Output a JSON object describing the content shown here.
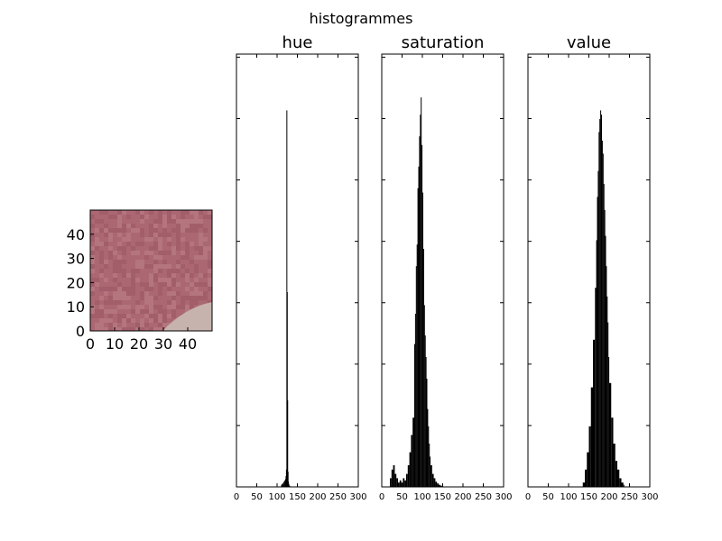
{
  "figure": {
    "title": "histogrammes",
    "background": "#ffffff"
  },
  "image_panel": {
    "xticks": [
      "0",
      "10",
      "20",
      "30",
      "40"
    ],
    "yticks": [
      "0",
      "10",
      "20",
      "30",
      "40"
    ],
    "xlim": [
      0,
      50
    ],
    "ylim": [
      50,
      0
    ],
    "colors": {
      "base": "#ab6872",
      "dark": "#9e5a66",
      "light": "#b87a83",
      "corner": "#c7b3ad"
    }
  },
  "chart_data": [
    {
      "type": "bar",
      "title": "hue",
      "xlim": [
        0,
        300
      ],
      "ylim": [
        0,
        1
      ],
      "xticks": [
        "0",
        "50",
        "100",
        "150",
        "200",
        "250",
        "300"
      ],
      "y_tick_labels": false,
      "bar_color": "#000000",
      "bins": [
        110,
        112,
        114,
        116,
        118,
        120,
        121,
        122,
        123,
        124,
        125,
        126,
        127,
        128,
        129,
        130
      ],
      "values": [
        0.005,
        0.007,
        0.009,
        0.012,
        0.015,
        0.018,
        0.025,
        0.04,
        0.87,
        0.45,
        0.2,
        0.035,
        0.012,
        0.006,
        0.003,
        0.002
      ]
    },
    {
      "type": "bar",
      "title": "saturation",
      "xlim": [
        0,
        300
      ],
      "ylim": [
        0,
        1
      ],
      "xticks": [
        "0",
        "50",
        "100",
        "150",
        "200",
        "250",
        "300"
      ],
      "y_tick_labels": false,
      "bar_color": "#000000",
      "bins": [
        20,
        24,
        28,
        32,
        36,
        40,
        44,
        48,
        52,
        56,
        60,
        64,
        68,
        72,
        76,
        80,
        82,
        84,
        86,
        88,
        90,
        92,
        94,
        96,
        98,
        100,
        102,
        104,
        106,
        108,
        110,
        112,
        114,
        116,
        118,
        120,
        124,
        128,
        132,
        136,
        140,
        144,
        148
      ],
      "values": [
        0.02,
        0.04,
        0.05,
        0.03,
        0.02,
        0.01,
        0.015,
        0.01,
        0.02,
        0.015,
        0.03,
        0.05,
        0.08,
        0.12,
        0.16,
        0.33,
        0.4,
        0.51,
        0.56,
        0.69,
        0.74,
        0.81,
        0.86,
        0.9,
        0.79,
        0.68,
        0.55,
        0.42,
        0.35,
        0.3,
        0.25,
        0.18,
        0.14,
        0.1,
        0.07,
        0.05,
        0.03,
        0.02,
        0.012,
        0.008,
        0.005,
        0.003,
        0.002
      ]
    },
    {
      "type": "bar",
      "title": "value",
      "xlim": [
        0,
        300
      ],
      "ylim": [
        0,
        1
      ],
      "xticks": [
        "0",
        "50",
        "100",
        "150",
        "200",
        "250",
        "300"
      ],
      "y_tick_labels": false,
      "bar_color": "#000000",
      "bins": [
        135,
        140,
        145,
        150,
        155,
        160,
        165,
        168,
        170,
        172,
        174,
        176,
        178,
        180,
        182,
        184,
        186,
        188,
        190,
        192,
        194,
        196,
        198,
        200,
        205,
        210,
        215,
        220,
        225,
        230,
        235
      ],
      "values": [
        0.01,
        0.04,
        0.08,
        0.14,
        0.23,
        0.34,
        0.46,
        0.57,
        0.67,
        0.73,
        0.82,
        0.85,
        0.87,
        0.86,
        0.8,
        0.77,
        0.7,
        0.64,
        0.58,
        0.51,
        0.44,
        0.38,
        0.3,
        0.24,
        0.16,
        0.1,
        0.06,
        0.04,
        0.02,
        0.01,
        0.005
      ]
    }
  ]
}
